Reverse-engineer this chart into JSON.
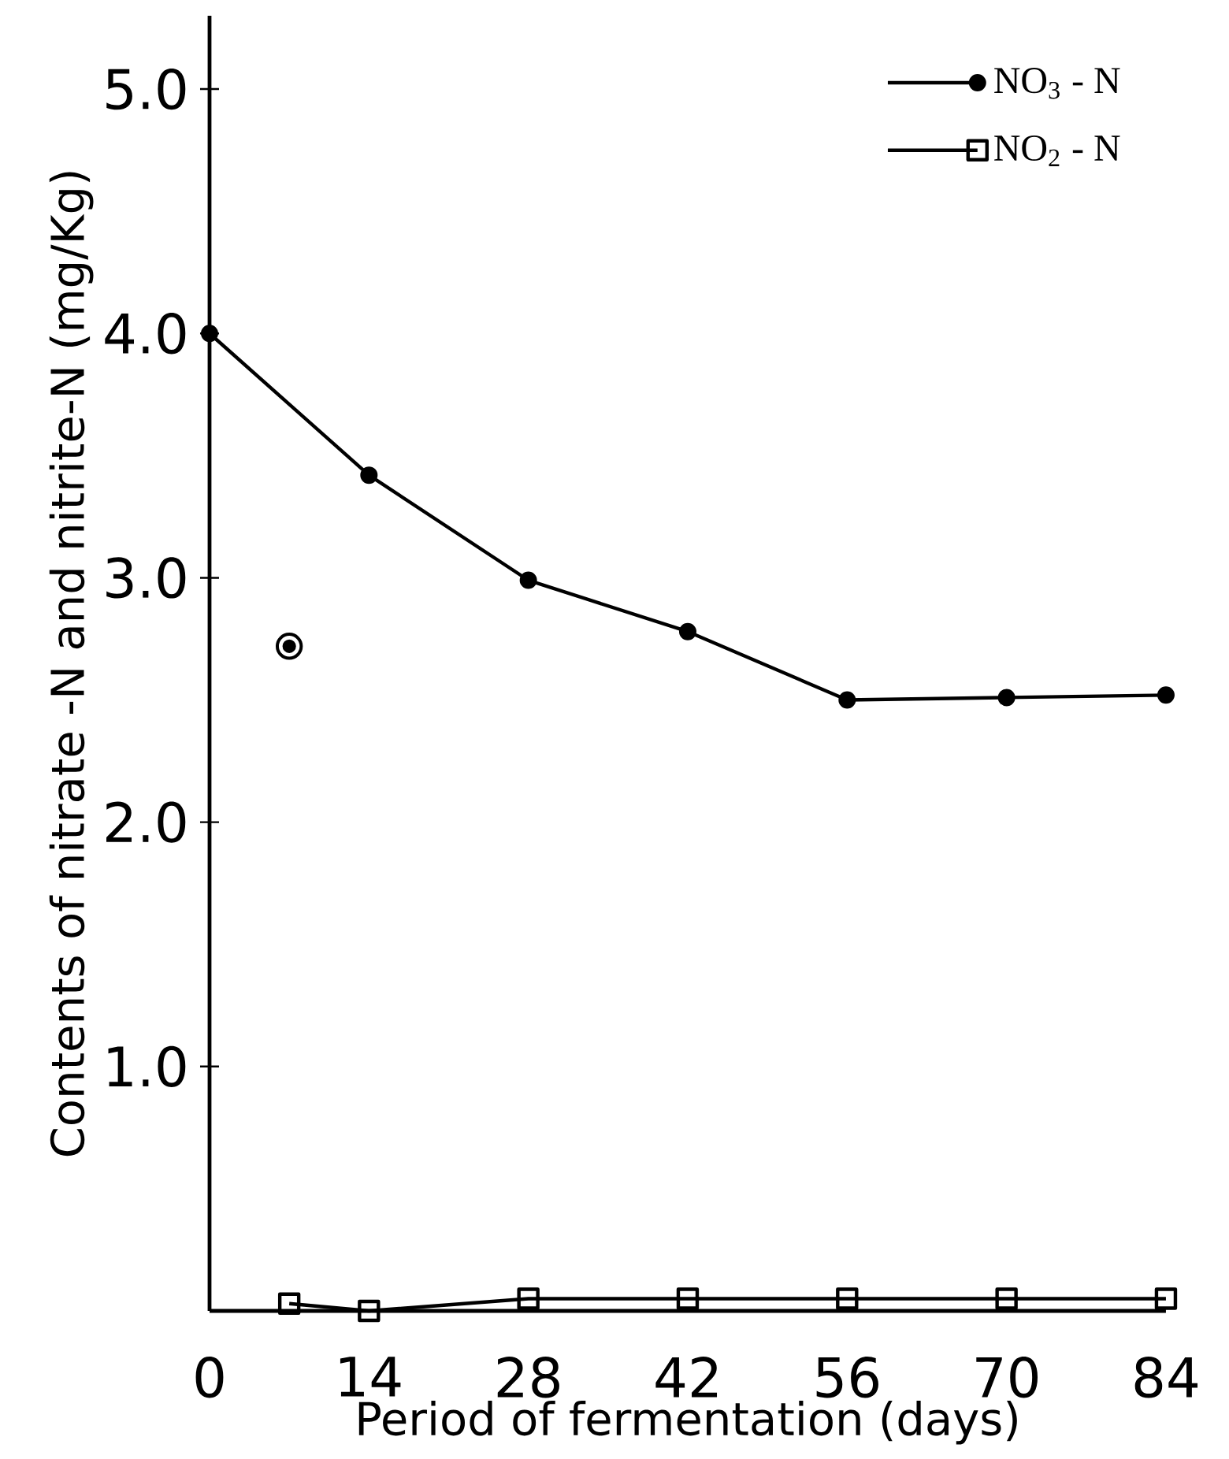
{
  "chart_data": {
    "type": "line",
    "xlabel": "Period of fermentation (days)",
    "ylabel": "Contents of nitrate -N  and nitrite-N (mg/Kg)",
    "xlim": [
      0,
      84
    ],
    "ylim": [
      0,
      5.3
    ],
    "xticks": [
      0,
      14,
      28,
      42,
      56,
      70,
      84
    ],
    "yticks": [
      {
        "value": 1,
        "label": "1.0"
      },
      {
        "value": 2,
        "label": "2.0"
      },
      {
        "value": 3,
        "label": "3.0"
      },
      {
        "value": 4,
        "label": "4.0"
      },
      {
        "value": 5,
        "label": "5.0"
      }
    ],
    "legend": "top right",
    "line_style": "solid",
    "series": [
      {
        "name": "NO$_{3}$ - N",
        "color": "#000000",
        "marker": "circle",
        "x": [
          0,
          14,
          28,
          42,
          56,
          70,
          84
        ],
        "values": [
          4.0,
          3.42,
          2.99,
          2.78,
          2.5,
          2.51,
          2.52
        ]
      },
      {
        "name": "NO$_{2}$ - N",
        "color": "#000000",
        "marker": "square",
        "x": [
          7,
          14,
          28,
          42,
          56,
          70,
          84
        ],
        "values": [
          0.03,
          0.0,
          0.05,
          0.05,
          0.05,
          0.05,
          0.05
        ]
      },
      {
        "type": "scatter",
        "color": "#000000",
        "marker": "circle",
        "x": [
          7
        ],
        "values": [
          2.72
        ]
      }
    ]
  }
}
